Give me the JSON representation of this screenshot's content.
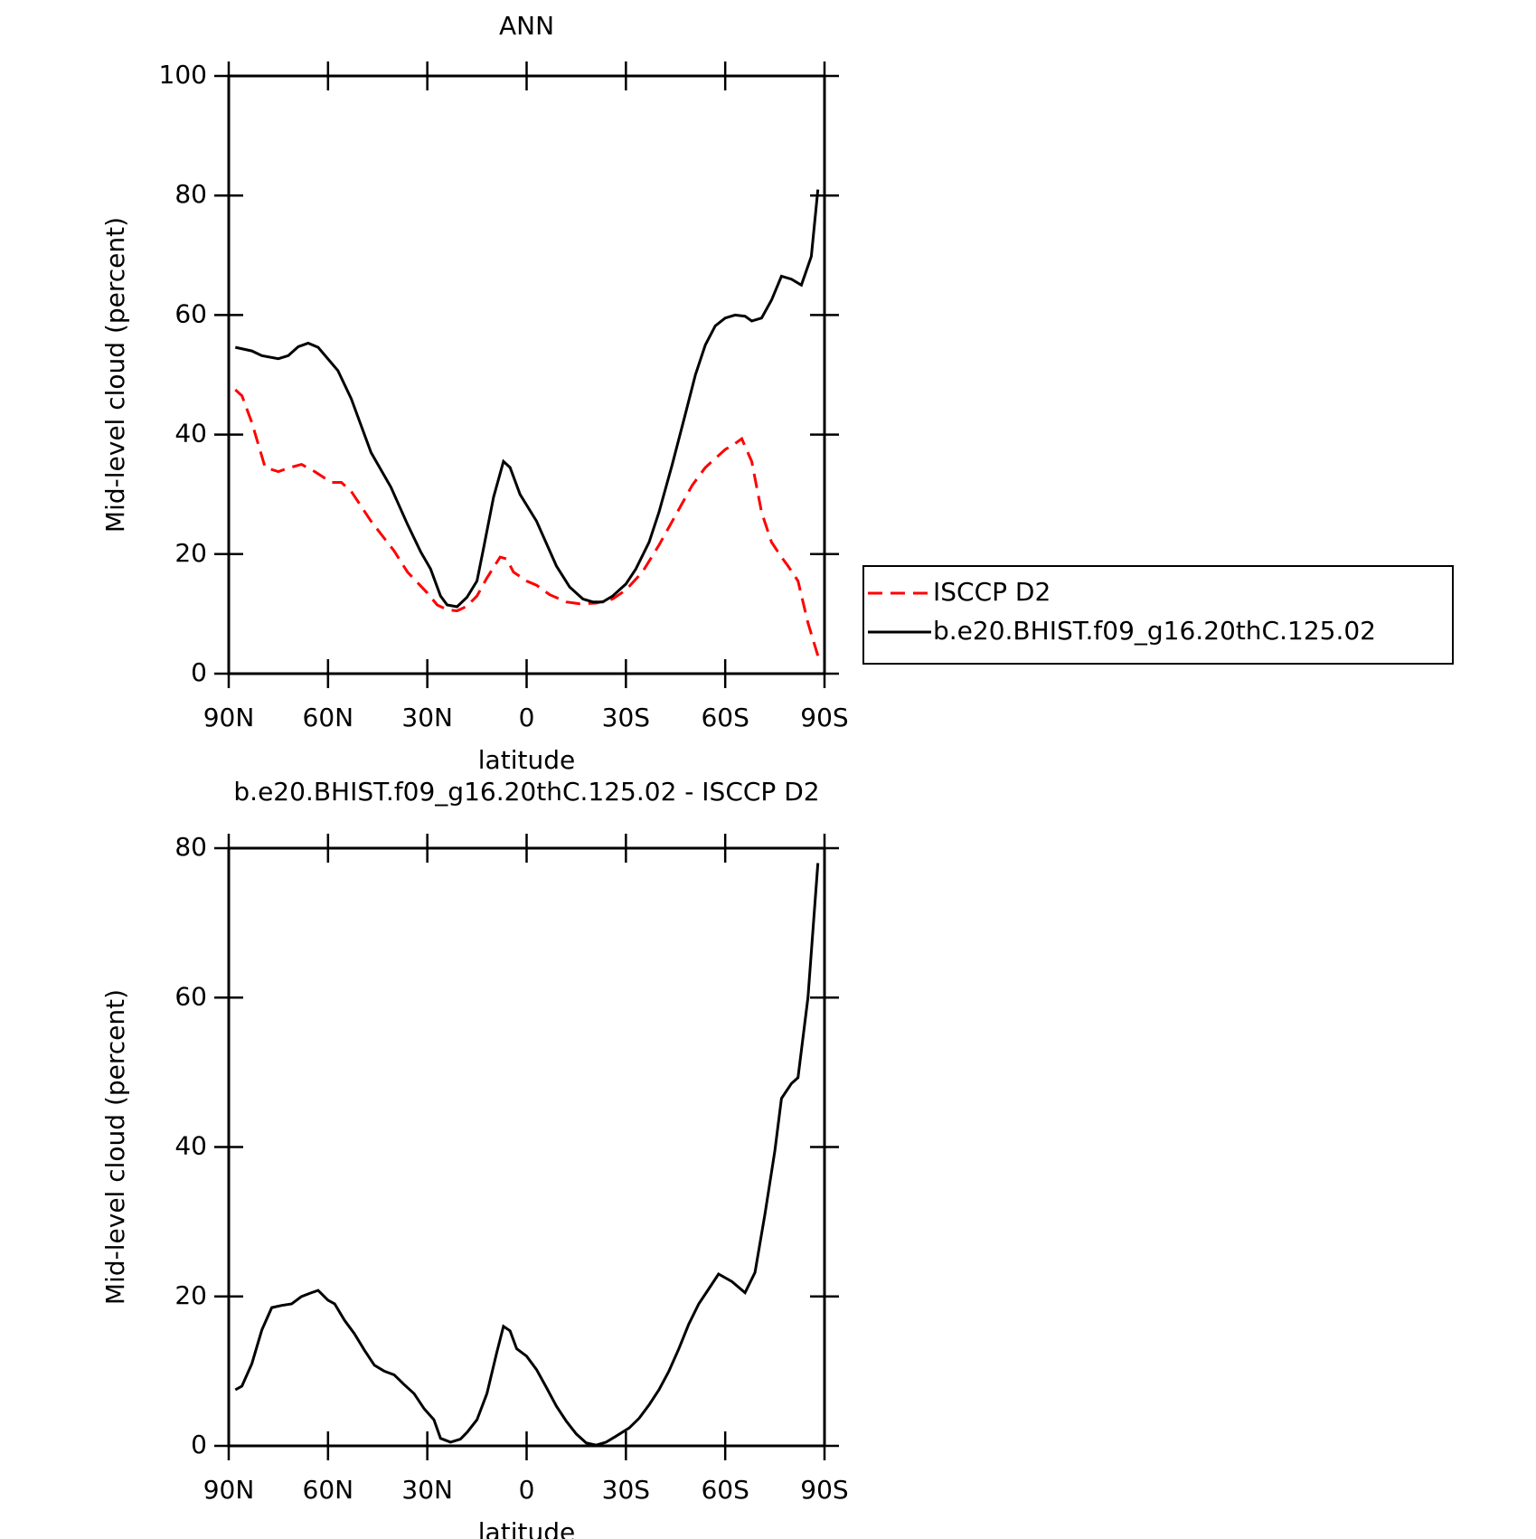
{
  "chart_data": [
    {
      "type": "line",
      "title": "ANN",
      "xlabel": "latitude",
      "ylabel": "Mid-level cloud (percent)",
      "xlim": [
        90,
        -90
      ],
      "xticks": [
        {
          "value": 90,
          "label": "90N"
        },
        {
          "value": 60,
          "label": "60N"
        },
        {
          "value": 30,
          "label": "30N"
        },
        0,
        {
          "value": -30,
          "label": "30S"
        },
        {
          "value": -60,
          "label": "60S"
        },
        {
          "value": -90,
          "label": "90S"
        }
      ],
      "ylim": [
        0,
        100
      ],
      "yticks": [
        0,
        20,
        40,
        60,
        80,
        100
      ],
      "legend": "right",
      "series": [
        {
          "name": "ISCCP D2",
          "color": "#ff0000",
          "linestyle": "dashed",
          "x": [
            88,
            86,
            83,
            79,
            75,
            72,
            68,
            64,
            59,
            56,
            53,
            47,
            40,
            36,
            30,
            27,
            24,
            21,
            18,
            15,
            12,
            8,
            6,
            4,
            0,
            -3,
            -7,
            -12,
            -16,
            -21,
            -26,
            -30,
            -35,
            -40,
            -45,
            -50,
            -54,
            -57,
            -60,
            -63,
            -65,
            -68,
            -71,
            -74,
            -77,
            -79,
            -82,
            -85,
            -88
          ],
          "values": [
            47.5,
            46.5,
            42,
            34.5,
            33.8,
            34.4,
            35,
            33.8,
            32,
            32,
            30.5,
            25.5,
            20.5,
            17,
            13.5,
            11.5,
            10.7,
            10.5,
            11.3,
            13,
            16,
            19.5,
            19.2,
            17,
            15.5,
            14.8,
            13.2,
            12,
            11.7,
            11.8,
            12.5,
            14,
            17,
            21.5,
            26.5,
            31.5,
            34.5,
            36,
            37.5,
            38.5,
            39.3,
            35.5,
            27,
            22,
            19.5,
            18,
            15.5,
            8.5,
            3
          ]
        },
        {
          "name": "b.e20.BHIST.f09_g16.20thC.125.02",
          "color": "#000000",
          "linestyle": "solid",
          "x": [
            88,
            83,
            80,
            75,
            72,
            69,
            66,
            63,
            57,
            53,
            47,
            41,
            36,
            32,
            29,
            26,
            24,
            21,
            18,
            15,
            13,
            10,
            7,
            5,
            2,
            -3,
            -9,
            -13,
            -17,
            -20,
            -23,
            -26,
            -30,
            -33,
            -37,
            -40,
            -44,
            -48,
            -51,
            -54,
            -57,
            -60,
            -63,
            -66,
            -68,
            -71,
            -74,
            -77,
            -80,
            -83,
            -86,
            -88
          ],
          "values": [
            54.6,
            54,
            53.2,
            52.7,
            53.2,
            54.7,
            55.3,
            54.6,
            50.7,
            46,
            37,
            31.2,
            25,
            20.4,
            17.5,
            13,
            11.5,
            11.2,
            12.8,
            15.5,
            21,
            29.5,
            35.5,
            34.5,
            30,
            25.5,
            18,
            14.5,
            12.5,
            12,
            12,
            13,
            15,
            17.5,
            22,
            27,
            35,
            43.5,
            50,
            55,
            58.2,
            59.5,
            60,
            59.8,
            59,
            59.5,
            62.5,
            66.5,
            66,
            65,
            69.8,
            81
          ]
        }
      ]
    },
    {
      "type": "line",
      "title": "b.e20.BHIST.f09_g16.20thC.125.02 - ISCCP D2",
      "xlabel": "latitude",
      "ylabel": "Mid-level cloud (percent)",
      "xlim": [
        90,
        -90
      ],
      "xticks": [
        {
          "value": 90,
          "label": "90N"
        },
        {
          "value": 60,
          "label": "60N"
        },
        {
          "value": 30,
          "label": "30N"
        },
        0,
        {
          "value": -30,
          "label": "30S"
        },
        {
          "value": -60,
          "label": "60S"
        },
        {
          "value": -90,
          "label": "90S"
        }
      ],
      "ylim": [
        0,
        80
      ],
      "yticks": [
        0,
        20,
        40,
        60,
        80
      ],
      "series": [
        {
          "color": "#000000",
          "linestyle": "solid",
          "x": [
            88,
            86,
            83,
            80,
            77,
            74,
            71,
            68,
            65,
            63,
            60,
            58,
            55,
            52,
            49,
            46,
            43,
            40,
            37,
            34,
            31,
            28,
            26,
            23,
            20,
            18,
            15,
            12,
            9,
            7,
            5,
            3,
            0,
            -3,
            -6,
            -9,
            -12,
            -15,
            -18,
            -21,
            -24,
            -27,
            -31,
            -34,
            -37,
            -40,
            -43,
            -46,
            -49,
            -52,
            -55,
            -58,
            -62,
            -66,
            -69,
            -72,
            -75,
            -77,
            -80,
            -82,
            -85,
            -88
          ],
          "values": [
            7.5,
            8,
            11,
            15.5,
            18.5,
            18.8,
            19,
            20,
            20.5,
            20.8,
            19.5,
            19,
            16.8,
            15,
            12.8,
            10.8,
            10,
            9.5,
            8.2,
            7,
            5,
            3.5,
            1,
            0.5,
            0.9,
            1.8,
            3.5,
            7,
            12.5,
            16,
            15.4,
            13,
            12,
            10.2,
            7.8,
            5.3,
            3.3,
            1.6,
            0.4,
            0.1,
            0.5,
            1.3,
            2.4,
            3.7,
            5.5,
            7.5,
            10,
            13,
            16.3,
            19,
            21,
            23,
            22,
            20.5,
            23.2,
            31,
            39.5,
            46.5,
            48.5,
            49.3,
            60,
            78
          ]
        }
      ]
    }
  ]
}
